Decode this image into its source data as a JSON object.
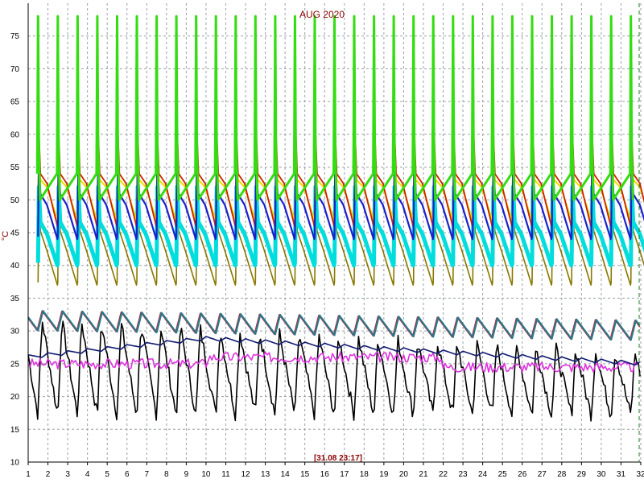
{
  "chart_data": {
    "type": "line",
    "title": "AUG 2020",
    "ylabel": "°C",
    "timestamp": "[31.08 23:17]",
    "xlim": [
      1,
      32
    ],
    "ylim": [
      10,
      80
    ],
    "x_ticks": [
      "1",
      "2",
      "3",
      "4",
      "5",
      "6",
      "7",
      "8",
      "9",
      "10",
      "11",
      "12",
      "13",
      "14",
      "15",
      "16",
      "17",
      "18",
      "19",
      "20",
      "21",
      "22",
      "23",
      "24",
      "25",
      "26",
      "27",
      "28",
      "29",
      "30",
      "31",
      "32"
    ],
    "y_ticks": [
      "10",
      "15",
      "20",
      "25",
      "30",
      "35",
      "40",
      "45",
      "50",
      "55",
      "60",
      "65",
      "70",
      "75"
    ],
    "grid": true,
    "colors": {
      "background": "#ffffff",
      "grid": "#9aa0a8",
      "title": "#8b0000",
      "axis": "#000000",
      "green": "#33dd11",
      "red": "#cc2200",
      "yellow": "#eedd00",
      "olive": "#887700",
      "blue": "#1a20cc",
      "navy": "#101a70",
      "cyan": "#00dddd",
      "magenta": "#dd33dd",
      "teal": "#2a7a8a",
      "crimson": "#c0203a",
      "black": "#000000"
    },
    "series": [
      {
        "color": "green",
        "daily_min": 50,
        "daily_max": 78
      },
      {
        "color": "red",
        "daily_min": 46,
        "daily_max": 60.5
      },
      {
        "color": "yellow",
        "daily_min": 47,
        "daily_max": 58
      },
      {
        "color": "blue",
        "daily_min": 44,
        "daily_max": 56.5
      },
      {
        "color": "cyan",
        "daily_min": 40,
        "daily_max": 52
      },
      {
        "color": "olive",
        "daily_min": 37,
        "daily_max": 52
      },
      {
        "color": "teal",
        "start": 31,
        "end": 29.5,
        "daily_amplitude": 3
      },
      {
        "color": "crimson",
        "start": 31,
        "end": 29.5,
        "daily_amplitude": 3
      },
      {
        "color": "navy",
        "start": 26,
        "end": 25,
        "peak": 28.8
      },
      {
        "color": "magenta",
        "start": 25,
        "end": 24
      },
      {
        "color": "black",
        "min": 14,
        "max": 35
      }
    ]
  }
}
